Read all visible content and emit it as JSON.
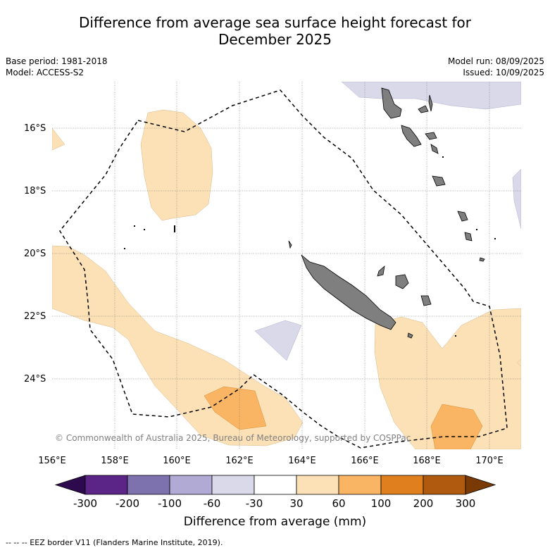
{
  "title_line1": "Difference from average sea surface height forecast for",
  "title_line2": "December 2025",
  "base_period": "Base period: 1981-2018",
  "model": "Model: ACCESS-S2",
  "model_run": "Model run: 08/09/2025",
  "issued": "Issued: 10/09/2025",
  "copyright": "© Commonwealth of Australia 2025, Bureau of Meteorology, supported by COSPPac",
  "lat_labels": [
    "16°S",
    "18°S",
    "20°S",
    "22°S",
    "24°S"
  ],
  "lon_labels": [
    "156°E",
    "158°E",
    "160°E",
    "162°E",
    "164°E",
    "166°E",
    "168°E",
    "170°E"
  ],
  "colorbar": {
    "label": "Difference from average (mm)",
    "ticks": [
      "-300",
      "-200",
      "-100",
      "-60",
      "-30",
      "30",
      "60",
      "100",
      "200",
      "300"
    ],
    "colors": [
      "#5a2587",
      "#7e72ae",
      "#b1aad4",
      "#d9d9ea",
      "#ffffff",
      "#fde1b6",
      "#f9b563",
      "#e07f1d",
      "#b05a0f"
    ],
    "extend_low": "#2d0a4e",
    "extend_high": "#7a3a06"
  },
  "legend_text": "-- EEZ border V11 (Flanders Marine Institute, 2019).",
  "legend_dash": "-- --"
}
